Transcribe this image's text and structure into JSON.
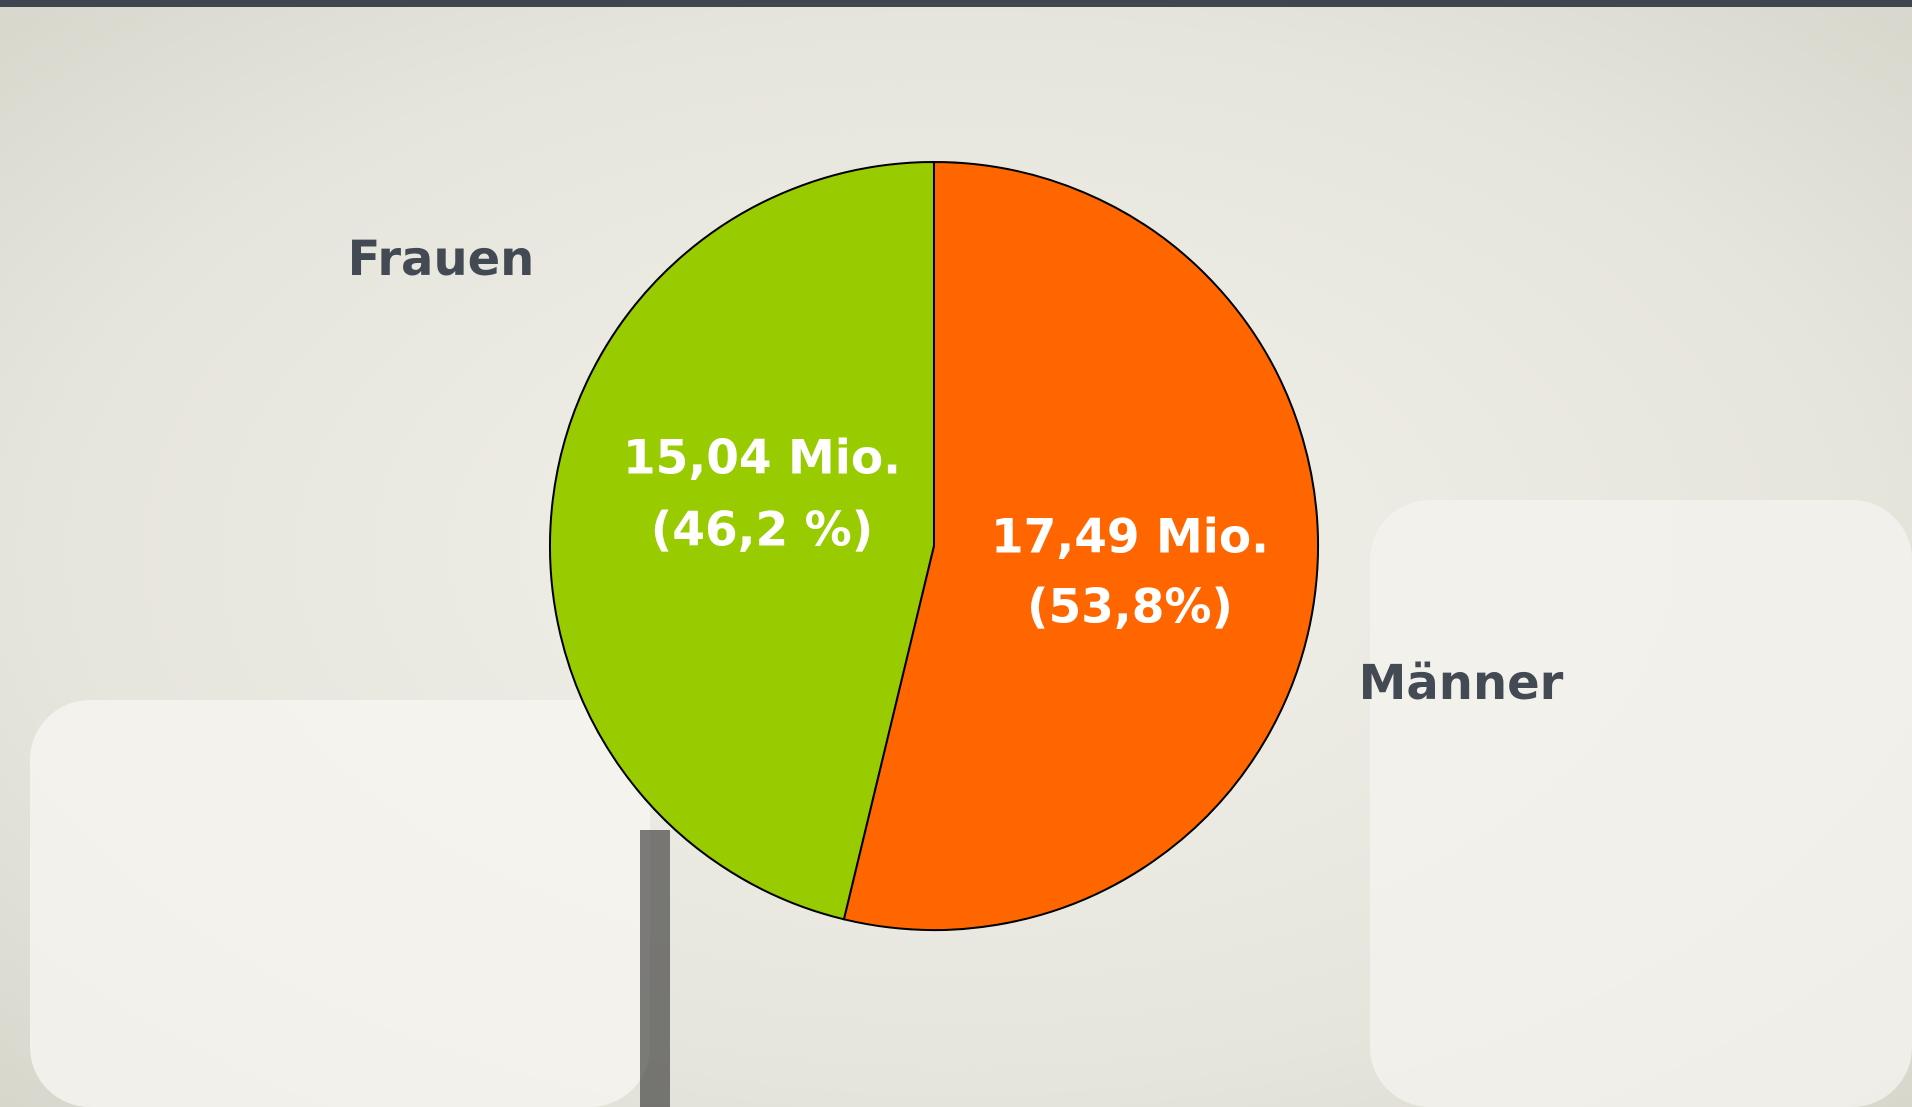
{
  "chart_data": {
    "type": "pie",
    "categories": [
      "Frauen",
      "Männer"
    ],
    "values": [
      15.04,
      17.49
    ],
    "value_labels": [
      "15,04 Mio.",
      "17,49 Mio."
    ],
    "percentages": [
      46.2,
      53.8
    ],
    "percentage_labels": [
      "(46,2 %)",
      "(53,8%)"
    ],
    "colors": [
      "#99cc00",
      "#ff6600"
    ]
  }
}
